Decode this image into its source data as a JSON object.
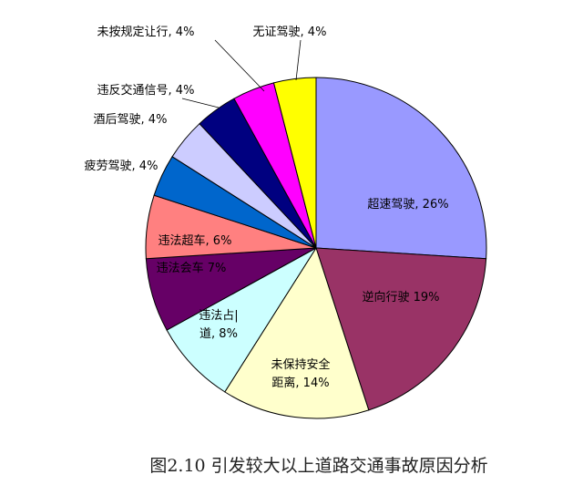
{
  "chart_data": {
    "type": "pie",
    "start": "top",
    "direction": "clockwise",
    "slices": [
      {
        "label": "超速驾驶",
        "value": 26,
        "color": "#9999ff"
      },
      {
        "label": "逆向行驶",
        "value": 19,
        "color": "#993366"
      },
      {
        "label": "未保持安全距离",
        "value": 14,
        "color": "#ffffcc"
      },
      {
        "label": "违法占道",
        "value": 8,
        "color": "#ccffff"
      },
      {
        "label": "违法会车",
        "value": 7,
        "color": "#660066"
      },
      {
        "label": "违法超车",
        "value": 6,
        "color": "#ff8080"
      },
      {
        "label": "疲劳驾驶",
        "value": 4,
        "color": "#0066cc"
      },
      {
        "label": "酒后驾驶",
        "value": 4,
        "color": "#ccccff"
      },
      {
        "label": "违反交通信号",
        "value": 4,
        "color": "#000080"
      },
      {
        "label": "未按规定让行",
        "value": 4,
        "color": "#ff00ff"
      },
      {
        "label": "无证驾驶",
        "value": 4,
        "color": "#ffff00"
      }
    ],
    "data_labels": [
      "超速驾驶, 26%",
      "逆向行驶 19%",
      "未保持安全|距离, 14%",
      "违法占|道, 8%",
      "违法会车 7%",
      "违法超车, 6%",
      "疲劳驾驶, 4%",
      "酒后驾驶, 4%",
      "违反交通信号, 4%",
      "未按规定让行, 4%",
      "无证驾驶, 4%"
    ]
  },
  "caption": "图2.10 引发较大以上道路交通事故原因分析"
}
